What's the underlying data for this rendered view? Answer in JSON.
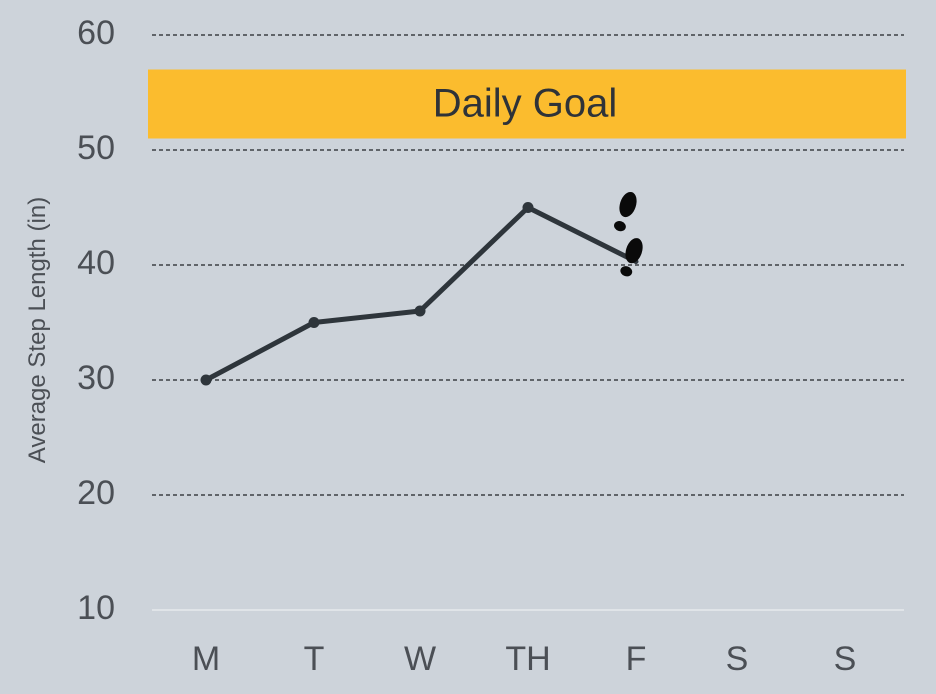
{
  "chart_data": {
    "type": "line",
    "ylabel": "Average Step Length (in)",
    "xlabel": "",
    "categories": [
      "M",
      "T",
      "W",
      "TH",
      "F",
      "S",
      "S"
    ],
    "y_ticks": [
      10,
      20,
      30,
      40,
      50,
      60
    ],
    "ylim": [
      10,
      60
    ],
    "grid": true,
    "series": [
      {
        "values": [
          30,
          35,
          36,
          45,
          40.3,
          null,
          null
        ]
      }
    ],
    "goal_band": {
      "label": "Daily Goal",
      "range": [
        51,
        57
      ],
      "color": "#fbbc2e"
    },
    "line_color": "#2e353b",
    "marker_icon": "footprints-icon"
  }
}
